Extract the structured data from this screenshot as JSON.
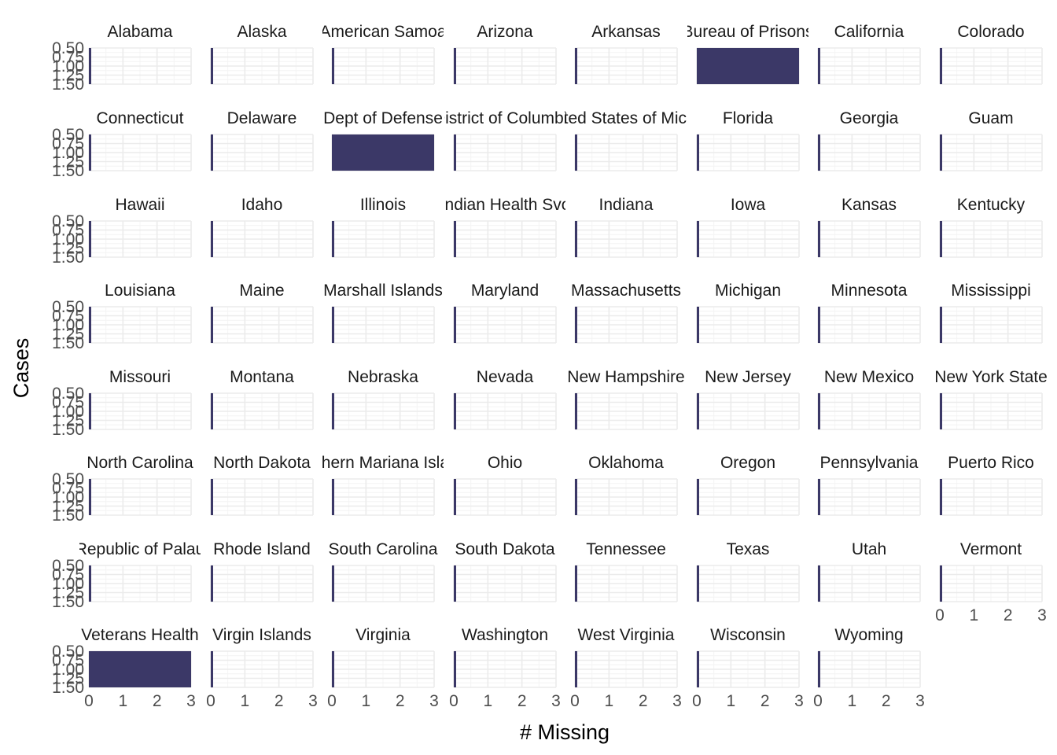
{
  "chart_data": {
    "type": "bar",
    "layout": "facet-grid",
    "ncol": 8,
    "xlabel": "# Missing",
    "ylabel": "Cases",
    "xlim": [
      0,
      3
    ],
    "ylim": [
      0.5,
      1.5
    ],
    "x_ticks": [
      "0",
      "1",
      "2",
      "3"
    ],
    "y_ticks": [
      "0.50",
      "0.75",
      "1.00",
      "1.25",
      "1.50"
    ],
    "y_tick_values": [
      0.5,
      0.75,
      1.0,
      1.25,
      1.5
    ],
    "bar_color": "#3b3867",
    "grid": true,
    "facets": [
      {
        "label": "Alabama",
        "value": 0
      },
      {
        "label": "Alaska",
        "value": 0
      },
      {
        "label": "American Samoa",
        "value": 0
      },
      {
        "label": "Arizona",
        "value": 0
      },
      {
        "label": "Arkansas",
        "value": 0
      },
      {
        "label": "Bureau of Prisons",
        "value": 3
      },
      {
        "label": "California",
        "value": 0
      },
      {
        "label": "Colorado",
        "value": 0
      },
      {
        "label": "Connecticut",
        "value": 0
      },
      {
        "label": "Delaware",
        "value": 0
      },
      {
        "label": "Dept of Defense",
        "value": 3
      },
      {
        "label": "District of Columbia",
        "value": 0
      },
      {
        "label": "Federated States of Micronesia",
        "value": 0
      },
      {
        "label": "Florida",
        "value": 0
      },
      {
        "label": "Georgia",
        "value": 0
      },
      {
        "label": "Guam",
        "value": 0
      },
      {
        "label": "Hawaii",
        "value": 0
      },
      {
        "label": "Idaho",
        "value": 0
      },
      {
        "label": "Illinois",
        "value": 0
      },
      {
        "label": "Indian Health Svc",
        "value": 0
      },
      {
        "label": "Indiana",
        "value": 0
      },
      {
        "label": "Iowa",
        "value": 0
      },
      {
        "label": "Kansas",
        "value": 0
      },
      {
        "label": "Kentucky",
        "value": 0
      },
      {
        "label": "Louisiana",
        "value": 0
      },
      {
        "label": "Maine",
        "value": 0
      },
      {
        "label": "Marshall Islands",
        "value": 0
      },
      {
        "label": "Maryland",
        "value": 0
      },
      {
        "label": "Massachusetts",
        "value": 0
      },
      {
        "label": "Michigan",
        "value": 0
      },
      {
        "label": "Minnesota",
        "value": 0
      },
      {
        "label": "Mississippi",
        "value": 0
      },
      {
        "label": "Missouri",
        "value": 0
      },
      {
        "label": "Montana",
        "value": 0
      },
      {
        "label": "Nebraska",
        "value": 0
      },
      {
        "label": "Nevada",
        "value": 0
      },
      {
        "label": "New Hampshire",
        "value": 0
      },
      {
        "label": "New Jersey",
        "value": 0
      },
      {
        "label": "New Mexico",
        "value": 0
      },
      {
        "label": "New York State",
        "value": 0
      },
      {
        "label": "North Carolina",
        "value": 0
      },
      {
        "label": "North Dakota",
        "value": 0
      },
      {
        "label": "Northern Mariana Islands",
        "value": 0
      },
      {
        "label": "Ohio",
        "value": 0
      },
      {
        "label": "Oklahoma",
        "value": 0
      },
      {
        "label": "Oregon",
        "value": 0
      },
      {
        "label": "Pennsylvania",
        "value": 0
      },
      {
        "label": "Puerto Rico",
        "value": 0
      },
      {
        "label": "Republic of Palau",
        "value": 0
      },
      {
        "label": "Rhode Island",
        "value": 0
      },
      {
        "label": "South Carolina",
        "value": 0
      },
      {
        "label": "South Dakota",
        "value": 0
      },
      {
        "label": "Tennessee",
        "value": 0
      },
      {
        "label": "Texas",
        "value": 0
      },
      {
        "label": "Utah",
        "value": 0
      },
      {
        "label": "Vermont",
        "value": 0
      },
      {
        "label": "Veterans Health",
        "value": 3
      },
      {
        "label": "Virgin Islands",
        "value": 0
      },
      {
        "label": "Virginia",
        "value": 0
      },
      {
        "label": "Washington",
        "value": 0
      },
      {
        "label": "West Virginia",
        "value": 0
      },
      {
        "label": "Wisconsin",
        "value": 0
      },
      {
        "label": "Wyoming",
        "value": 0
      }
    ]
  }
}
